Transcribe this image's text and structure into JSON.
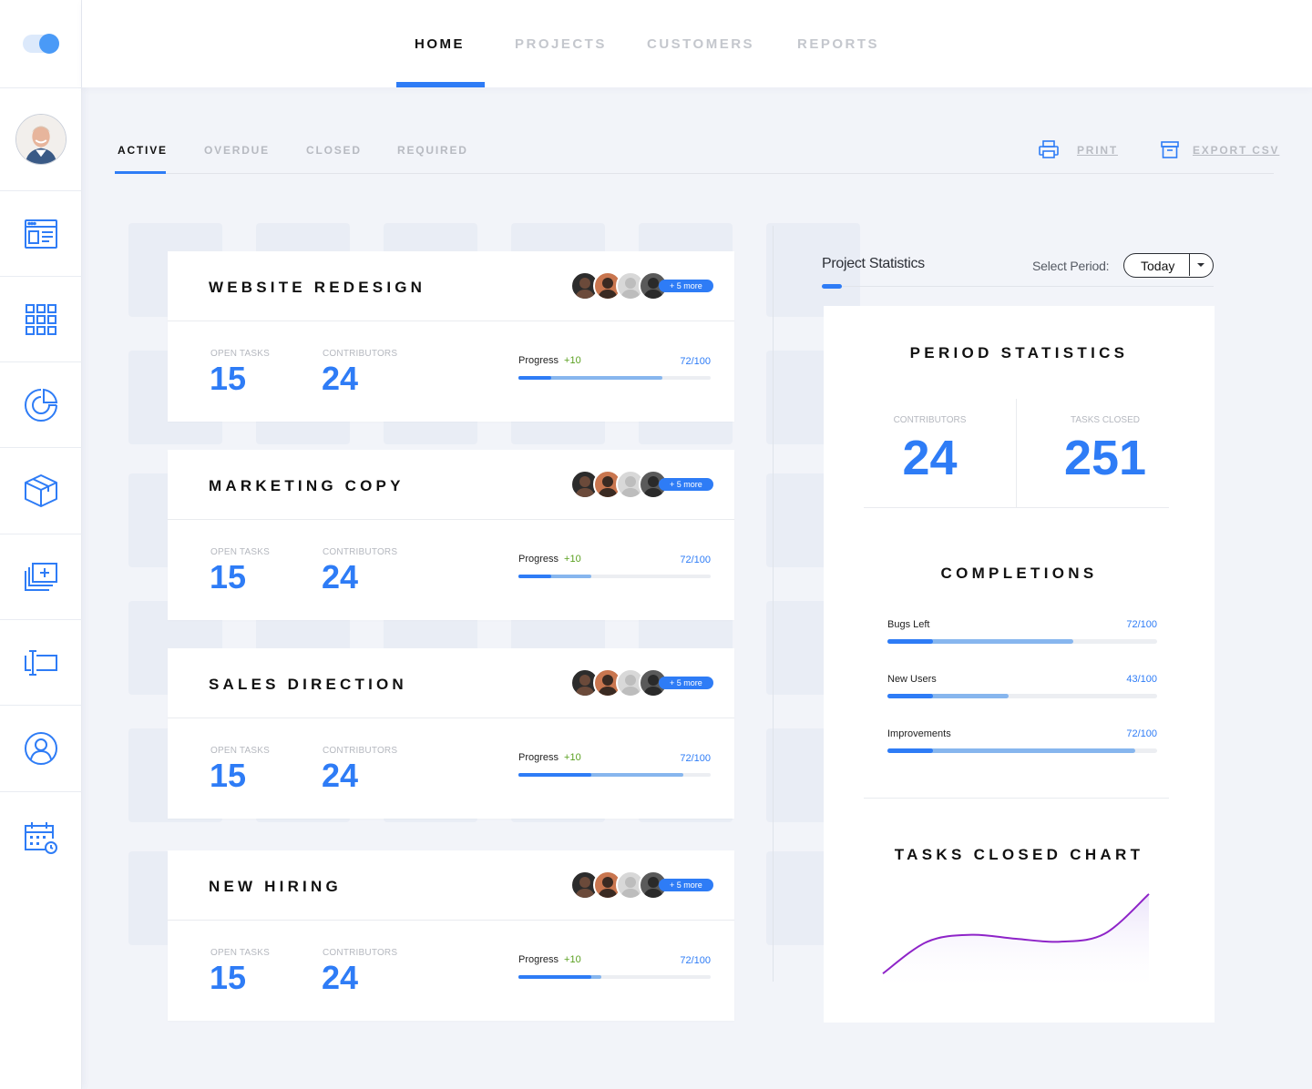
{
  "nav": {
    "tabs": [
      {
        "label": "HOME",
        "active": true
      },
      {
        "label": "PROJECTS",
        "active": false
      },
      {
        "label": "CUSTOMERS",
        "active": false
      },
      {
        "label": "REPORTS",
        "active": false
      }
    ]
  },
  "sidebar": {
    "items": [
      {
        "name": "toggle"
      },
      {
        "name": "user-avatar"
      },
      {
        "name": "dashboard-icon"
      },
      {
        "name": "grid-apps-icon"
      },
      {
        "name": "analytics-ring-icon"
      },
      {
        "name": "package-box-icon"
      },
      {
        "name": "add-gallery-icon"
      },
      {
        "name": "text-field-icon"
      },
      {
        "name": "user-circle-icon"
      },
      {
        "name": "calendar-clock-icon"
      }
    ]
  },
  "subtabs": [
    {
      "label": "ACTIVE",
      "active": true
    },
    {
      "label": "OVERDUE",
      "active": false
    },
    {
      "label": "CLOSED",
      "active": false
    },
    {
      "label": "REQUIRED",
      "active": false
    }
  ],
  "actions": {
    "print": "PRINT",
    "export": "EXPORT CSV"
  },
  "projects": [
    {
      "title": "WEBSITE REDESIGN",
      "more": "+ 5 more",
      "open_tasks_label": "OPEN TASKS",
      "open_tasks": "15",
      "contributors_label": "CONTRIBUTORS",
      "contributors": "24",
      "progress_label": "Progress",
      "progress_delta": "+10",
      "progress_text": "72/100",
      "progress_dark": 0.17,
      "progress_light": 0.75
    },
    {
      "title": "MARKETING COPY",
      "more": "+ 5 more",
      "open_tasks_label": "OPEN TASKS",
      "open_tasks": "15",
      "contributors_label": "CONTRIBUTORS",
      "contributors": "24",
      "progress_label": "Progress",
      "progress_delta": "+10",
      "progress_text": "72/100",
      "progress_dark": 0.17,
      "progress_light": 0.38
    },
    {
      "title": "SALES DIRECTION",
      "more": "+ 5 more",
      "open_tasks_label": "OPEN TASKS",
      "open_tasks": "15",
      "contributors_label": "CONTRIBUTORS",
      "contributors": "24",
      "progress_label": "Progress",
      "progress_delta": "+10",
      "progress_text": "72/100",
      "progress_dark": 0.38,
      "progress_light": 0.86
    },
    {
      "title": "NEW HIRING",
      "more": "+ 5 more",
      "open_tasks_label": "OPEN TASKS",
      "open_tasks": "15",
      "contributors_label": "CONTRIBUTORS",
      "contributors": "24",
      "progress_label": "Progress",
      "progress_delta": "+10",
      "progress_text": "72/100",
      "progress_dark": 0.38,
      "progress_light": 0.43
    }
  ],
  "stats": {
    "title": "Project Statistics",
    "select_label": "Select Period:",
    "select_value": "Today",
    "period_heading": "PERIOD STATISTICS",
    "contributors_label": "CONTRIBUTORS",
    "contributors": "24",
    "tasks_closed_label": "TASKS CLOSED",
    "tasks_closed": "251",
    "completions_heading": "COMPLETIONS",
    "completions": [
      {
        "label": "Bugs Left",
        "value": "72/100",
        "dark": 0.17,
        "light": 0.69
      },
      {
        "label": "New Users",
        "value": "43/100",
        "dark": 0.17,
        "light": 0.45
      },
      {
        "label": "Improvements",
        "value": "72/100",
        "dark": 0.17,
        "light": 0.92
      }
    ],
    "chart_heading": "TASKS CLOSED CHART"
  },
  "chart_data": {
    "type": "area",
    "title": "TASKS CLOSED CHART",
    "x": [
      0,
      1,
      2,
      3,
      4,
      5,
      6
    ],
    "y": [
      20,
      52,
      59,
      55,
      52,
      60,
      100
    ],
    "ylim": [
      0,
      110
    ],
    "line_color": "#8e24c8",
    "fill_color": "#efe9fb",
    "grid": false
  },
  "colors": {
    "accent": "#2e7cf6",
    "light_accent": "#87b6ee",
    "positive": "#5aa020"
  }
}
